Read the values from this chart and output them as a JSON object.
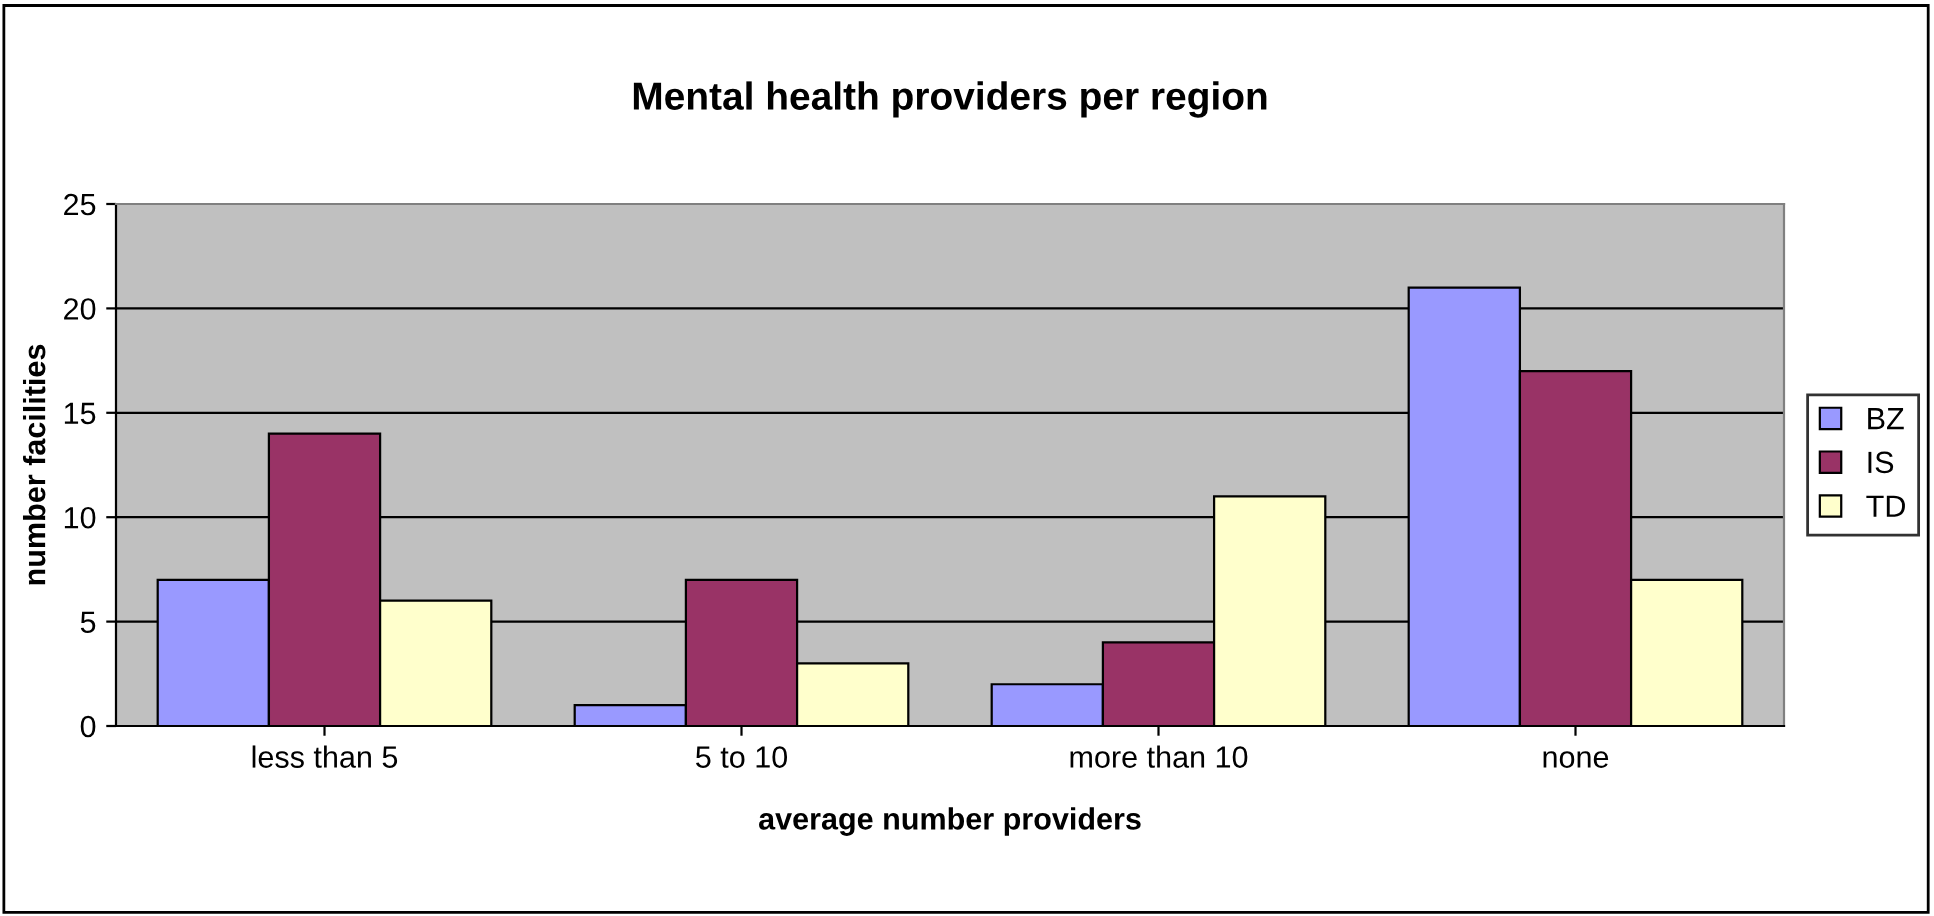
{
  "chart_data": {
    "type": "bar",
    "title": "Mental health providers per region",
    "xlabel": "average number providers",
    "ylabel": "number facilities",
    "categories": [
      "less than 5",
      "5 to 10",
      "more than 10",
      "none"
    ],
    "series": [
      {
        "name": "BZ",
        "color": "#9999ff",
        "values": [
          7,
          1,
          2,
          21
        ]
      },
      {
        "name": "IS",
        "color": "#993366",
        "values": [
          14,
          7,
          4,
          17
        ]
      },
      {
        "name": "TD",
        "color": "#ffffcc",
        "values": [
          6,
          3,
          11,
          7
        ]
      }
    ],
    "ylim": [
      0,
      25
    ],
    "yticks": [
      0,
      5,
      10,
      15,
      20,
      25
    ],
    "grid": "y",
    "legend": "right"
  }
}
